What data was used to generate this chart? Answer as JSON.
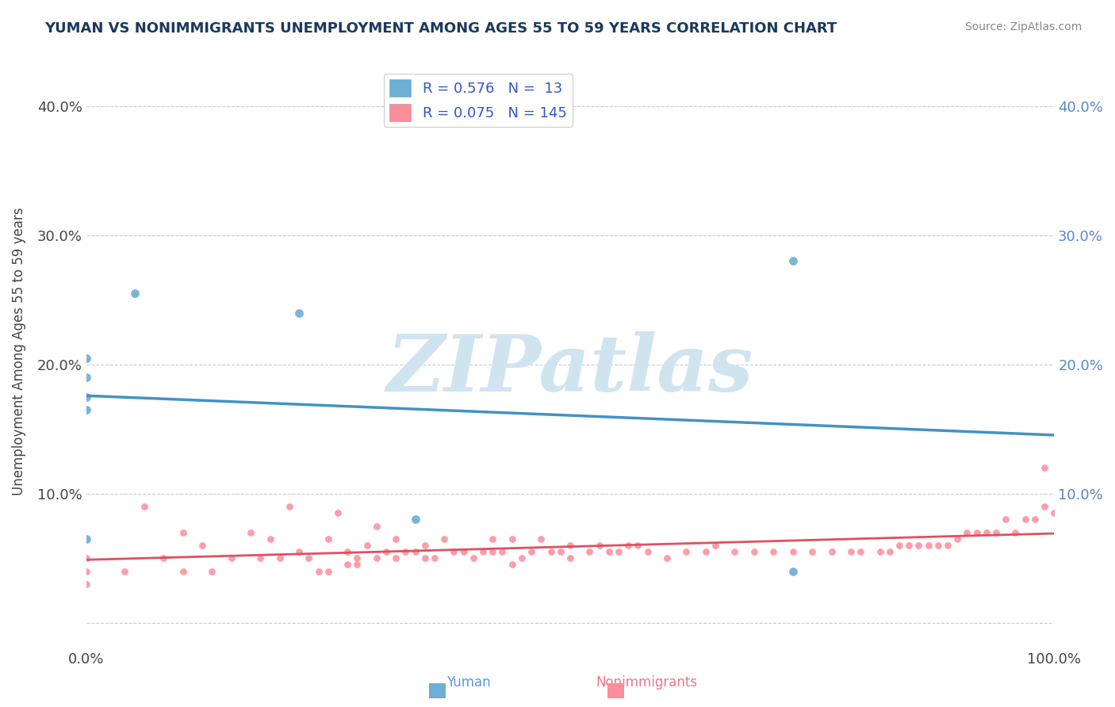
{
  "title": "YUMAN VS NONIMMIGRANTS UNEMPLOYMENT AMONG AGES 55 TO 59 YEARS CORRELATION CHART",
  "source_text": "Source: ZipAtlas.com",
  "xlabel": "",
  "ylabel": "Unemployment Among Ages 55 to 59 years",
  "watermark": "ZIPatlas",
  "xlim": [
    0.0,
    1.0
  ],
  "ylim": [
    -0.02,
    0.44
  ],
  "yticks": [
    0.0,
    0.1,
    0.2,
    0.3,
    0.4
  ],
  "ytick_labels": [
    "",
    "10.0%",
    "20.0%",
    "30.0%",
    "40.0%"
  ],
  "xticks": [
    0.0,
    1.0
  ],
  "xtick_labels": [
    "0.0%",
    "100.0%"
  ],
  "yuman_R": 0.576,
  "yuman_N": 13,
  "nonimm_R": 0.075,
  "nonimm_N": 145,
  "yuman_color": "#6baed6",
  "yuman_line_color": "#4292c6",
  "nonimm_color": "#fc8d9b",
  "nonimm_line_color": "#e05060",
  "legend_text_color": "#3355cc",
  "title_color": "#1a3a5c",
  "watermark_color": "#d0e4f0",
  "background_color": "#ffffff",
  "grid_color": "#cccccc",
  "yuman_x": [
    0.0,
    0.0,
    0.0,
    0.0,
    0.0,
    0.05,
    0.22,
    0.34,
    0.73,
    0.73
  ],
  "yuman_y": [
    0.175,
    0.19,
    0.205,
    0.165,
    0.065,
    0.255,
    0.24,
    0.08,
    0.28,
    0.04
  ],
  "nonimm_x": [
    0.0,
    0.0,
    0.0,
    0.04,
    0.06,
    0.08,
    0.1,
    0.1,
    0.12,
    0.13,
    0.15,
    0.17,
    0.18,
    0.19,
    0.2,
    0.21,
    0.22,
    0.23,
    0.24,
    0.25,
    0.25,
    0.26,
    0.27,
    0.27,
    0.28,
    0.28,
    0.29,
    0.3,
    0.3,
    0.31,
    0.32,
    0.32,
    0.33,
    0.34,
    0.35,
    0.35,
    0.36,
    0.37,
    0.38,
    0.39,
    0.4,
    0.41,
    0.42,
    0.42,
    0.43,
    0.44,
    0.44,
    0.45,
    0.46,
    0.47,
    0.48,
    0.49,
    0.5,
    0.5,
    0.52,
    0.53,
    0.54,
    0.55,
    0.56,
    0.57,
    0.58,
    0.6,
    0.62,
    0.64,
    0.65,
    0.67,
    0.69,
    0.71,
    0.73,
    0.75,
    0.77,
    0.79,
    0.8,
    0.82,
    0.83,
    0.84,
    0.85,
    0.86,
    0.87,
    0.88,
    0.89,
    0.9,
    0.91,
    0.92,
    0.93,
    0.94,
    0.95,
    0.96,
    0.97,
    0.98,
    0.99,
    0.99,
    1.0
  ],
  "nonimm_y": [
    0.03,
    0.04,
    0.05,
    0.04,
    0.09,
    0.05,
    0.07,
    0.04,
    0.06,
    0.04,
    0.05,
    0.07,
    0.05,
    0.065,
    0.05,
    0.09,
    0.055,
    0.05,
    0.04,
    0.04,
    0.065,
    0.085,
    0.045,
    0.055,
    0.045,
    0.05,
    0.06,
    0.05,
    0.075,
    0.055,
    0.065,
    0.05,
    0.055,
    0.055,
    0.06,
    0.05,
    0.05,
    0.065,
    0.055,
    0.055,
    0.05,
    0.055,
    0.065,
    0.055,
    0.055,
    0.065,
    0.045,
    0.05,
    0.055,
    0.065,
    0.055,
    0.055,
    0.05,
    0.06,
    0.055,
    0.06,
    0.055,
    0.055,
    0.06,
    0.06,
    0.055,
    0.05,
    0.055,
    0.055,
    0.06,
    0.055,
    0.055,
    0.055,
    0.055,
    0.055,
    0.055,
    0.055,
    0.055,
    0.055,
    0.055,
    0.06,
    0.06,
    0.06,
    0.06,
    0.06,
    0.06,
    0.065,
    0.07,
    0.07,
    0.07,
    0.07,
    0.08,
    0.07,
    0.08,
    0.08,
    0.09,
    0.12,
    0.085
  ]
}
